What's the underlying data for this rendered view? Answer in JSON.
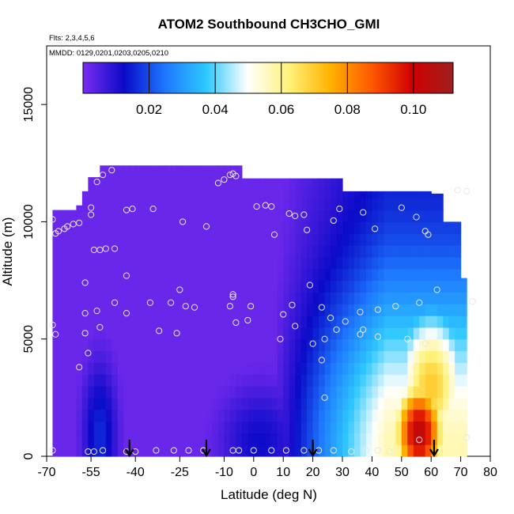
{
  "chart_data": {
    "type": "heatmap",
    "title": "ATOM2 Southbound CH3CHO_GMI",
    "subtitle_flights": "Flts: 2,3,4,5,6",
    "subtitle_dates": "MMDD: 0129,0201,0203,0205,0210",
    "xlabel": "Latitude (deg N)",
    "ylabel": "Altitude (m)",
    "xlim": [
      -70,
      80
    ],
    "ylim": [
      0,
      17500
    ],
    "x_ticks": [
      -70,
      -55,
      -40,
      -25,
      -10,
      0,
      10,
      20,
      30,
      40,
      50,
      60,
      70,
      80
    ],
    "y_ticks": [
      0,
      5000,
      10000,
      15000
    ],
    "colorbar": {
      "range": [
        0,
        0.112
      ],
      "ticks": [
        0.02,
        0.04,
        0.06,
        0.08,
        0.1
      ],
      "tick_labels": [
        "0.02",
        "0.04",
        "0.06",
        "0.08",
        "0.10"
      ],
      "colors": [
        "#7b2cf0",
        "#0a0ac8",
        "#1e78ff",
        "#2ec8ff",
        "#ffffff",
        "#fff27a",
        "#ffb300",
        "#ff5a00",
        "#d10000",
        "#9e1f1f"
      ]
    },
    "marker_latitudes": [
      -42,
      -16,
      20,
      61
    ],
    "sample_points": [
      {
        "x": -68,
        "y": 10100
      },
      {
        "x": -67,
        "y": 9500
      },
      {
        "x": -66,
        "y": 9600
      },
      {
        "x": -64,
        "y": 9700
      },
      {
        "x": -63,
        "y": 9800
      },
      {
        "x": -61,
        "y": 9900
      },
      {
        "x": -59,
        "y": 9950
      },
      {
        "x": -55,
        "y": 10600
      },
      {
        "x": -55,
        "y": 10300
      },
      {
        "x": -53,
        "y": 11700
      },
      {
        "x": -51,
        "y": 12000
      },
      {
        "x": -48,
        "y": 12200
      },
      {
        "x": -43,
        "y": 10500
      },
      {
        "x": -41,
        "y": 10550
      },
      {
        "x": -34,
        "y": 10550
      },
      {
        "x": -24,
        "y": 10000
      },
      {
        "x": -16,
        "y": 9800
      },
      {
        "x": -12,
        "y": 11650
      },
      {
        "x": -10,
        "y": 11800
      },
      {
        "x": -8,
        "y": 12000
      },
      {
        "x": -7,
        "y": 12050
      },
      {
        "x": -6,
        "y": 11950
      },
      {
        "x": 1,
        "y": 10650
      },
      {
        "x": 4,
        "y": 10700
      },
      {
        "x": 6,
        "y": 10650
      },
      {
        "x": 7,
        "y": 9450
      },
      {
        "x": 12,
        "y": 10350
      },
      {
        "x": 14,
        "y": 10250
      },
      {
        "x": 17,
        "y": 10300
      },
      {
        "x": 18,
        "y": 9650
      },
      {
        "x": 27,
        "y": 10050
      },
      {
        "x": 29,
        "y": 10550
      },
      {
        "x": 37,
        "y": 10400
      },
      {
        "x": 41,
        "y": 9700
      },
      {
        "x": 50,
        "y": 10600
      },
      {
        "x": 55,
        "y": 10200
      },
      {
        "x": 58,
        "y": 9600
      },
      {
        "x": 59,
        "y": 9450
      },
      {
        "x": 69,
        "y": 11350
      },
      {
        "x": 72,
        "y": 11300
      },
      {
        "x": -54,
        "y": 8800
      },
      {
        "x": -52,
        "y": 8800
      },
      {
        "x": -50,
        "y": 8850
      },
      {
        "x": -47,
        "y": 8850
      },
      {
        "x": -43,
        "y": 7700
      },
      {
        "x": -57,
        "y": 7400
      },
      {
        "x": -25,
        "y": 7100
      },
      {
        "x": -7,
        "y": 6900
      },
      {
        "x": -7,
        "y": 6800
      },
      {
        "x": 19,
        "y": 7300
      },
      {
        "x": 62,
        "y": 7100
      },
      {
        "x": -57,
        "y": 6100
      },
      {
        "x": -53,
        "y": 6200
      },
      {
        "x": -47,
        "y": 6550
      },
      {
        "x": -43,
        "y": 6100
      },
      {
        "x": -35,
        "y": 6550
      },
      {
        "x": -28,
        "y": 6550
      },
      {
        "x": -23,
        "y": 6400
      },
      {
        "x": -20,
        "y": 6350
      },
      {
        "x": -8,
        "y": 6400
      },
      {
        "x": -1,
        "y": 6400
      },
      {
        "x": 10,
        "y": 6050
      },
      {
        "x": 13,
        "y": 6450
      },
      {
        "x": 23,
        "y": 6350
      },
      {
        "x": 26,
        "y": 5900
      },
      {
        "x": 28,
        "y": 5400
      },
      {
        "x": 31,
        "y": 5750
      },
      {
        "x": 36,
        "y": 6150
      },
      {
        "x": 42,
        "y": 6250
      },
      {
        "x": 48,
        "y": 6400
      },
      {
        "x": 56,
        "y": 6550
      },
      {
        "x": 74,
        "y": 6600
      },
      {
        "x": -2,
        "y": 5800
      },
      {
        "x": -6,
        "y": 5700
      },
      {
        "x": -52,
        "y": 5500
      },
      {
        "x": -32,
        "y": 5350
      },
      {
        "x": -26,
        "y": 5250
      },
      {
        "x": 14,
        "y": 5550
      },
      {
        "x": 9,
        "y": 5000
      },
      {
        "x": 36,
        "y": 5200
      },
      {
        "x": 37,
        "y": 5400
      },
      {
        "x": 42,
        "y": 5100
      },
      {
        "x": 52,
        "y": 5000
      },
      {
        "x": 58,
        "y": 4800
      },
      {
        "x": -57,
        "y": 5250
      },
      {
        "x": -68,
        "y": 5600
      },
      {
        "x": -67,
        "y": 5200
      },
      {
        "x": -56,
        "y": 4400
      },
      {
        "x": 20,
        "y": 4800
      },
      {
        "x": 24,
        "y": 5000
      },
      {
        "x": 23,
        "y": 4100
      },
      {
        "x": -59,
        "y": 3800
      },
      {
        "x": 24,
        "y": 2500
      },
      {
        "x": 56,
        "y": 700
      },
      {
        "x": 72,
        "y": 800
      },
      {
        "x": -68,
        "y": 250
      },
      {
        "x": -56,
        "y": 200
      },
      {
        "x": -54,
        "y": 200
      },
      {
        "x": -51,
        "y": 250
      },
      {
        "x": -43,
        "y": 200
      },
      {
        "x": -40,
        "y": 200
      },
      {
        "x": -33,
        "y": 250
      },
      {
        "x": -27,
        "y": 250
      },
      {
        "x": -22,
        "y": 250
      },
      {
        "x": -17,
        "y": 250
      },
      {
        "x": -7,
        "y": 250
      },
      {
        "x": -5,
        "y": 250
      },
      {
        "x": 0,
        "y": 250
      },
      {
        "x": 6,
        "y": 250
      },
      {
        "x": 11,
        "y": 250
      },
      {
        "x": 17,
        "y": 250
      },
      {
        "x": 22,
        "y": 250
      },
      {
        "x": 27,
        "y": 250
      },
      {
        "x": 33,
        "y": 200
      },
      {
        "x": 38,
        "y": 250
      },
      {
        "x": 42,
        "y": 250
      },
      {
        "x": 46,
        "y": 200
      }
    ]
  }
}
